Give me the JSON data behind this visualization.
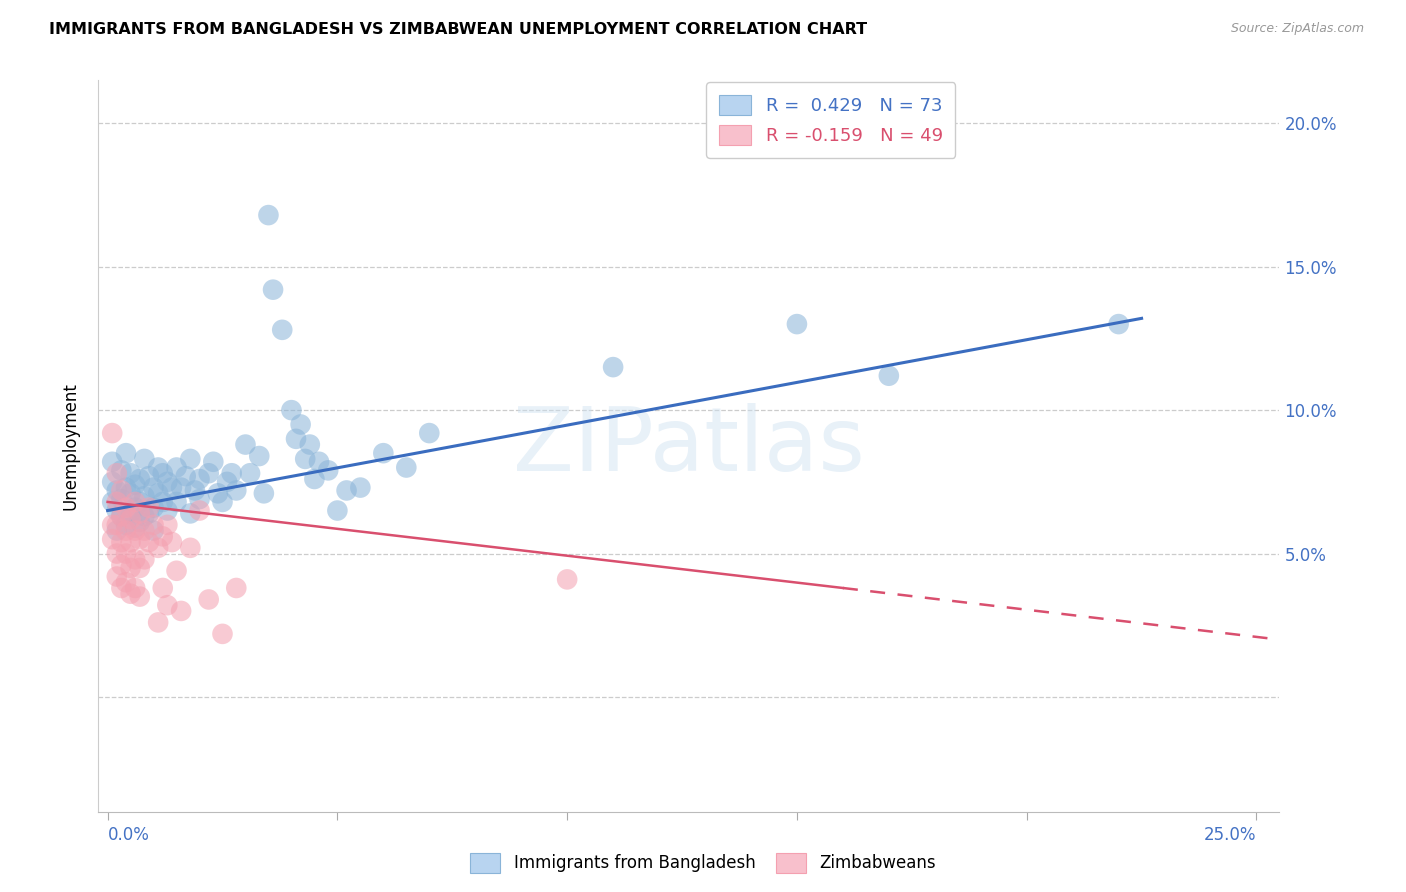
{
  "title": "IMMIGRANTS FROM BANGLADESH VS ZIMBABWEAN UNEMPLOYMENT CORRELATION CHART",
  "source": "Source: ZipAtlas.com",
  "ylabel": "Unemployment",
  "y_ticks": [
    0.0,
    0.05,
    0.1,
    0.15,
    0.2
  ],
  "x_lim": [
    -0.002,
    0.255
  ],
  "y_lim": [
    -0.04,
    0.215
  ],
  "watermark": "ZIPatlas",
  "blue_color": "#8ab4d8",
  "pink_color": "#f4a0b0",
  "blue_scatter": [
    [
      0.001,
      0.068
    ],
    [
      0.001,
      0.075
    ],
    [
      0.001,
      0.082
    ],
    [
      0.002,
      0.065
    ],
    [
      0.002,
      0.072
    ],
    [
      0.002,
      0.058
    ],
    [
      0.003,
      0.079
    ],
    [
      0.003,
      0.063
    ],
    [
      0.003,
      0.069
    ],
    [
      0.004,
      0.085
    ],
    [
      0.004,
      0.073
    ],
    [
      0.004,
      0.06
    ],
    [
      0.005,
      0.078
    ],
    [
      0.005,
      0.064
    ],
    [
      0.005,
      0.071
    ],
    [
      0.006,
      0.066
    ],
    [
      0.006,
      0.059
    ],
    [
      0.006,
      0.074
    ],
    [
      0.007,
      0.068
    ],
    [
      0.007,
      0.061
    ],
    [
      0.007,
      0.076
    ],
    [
      0.008,
      0.083
    ],
    [
      0.008,
      0.07
    ],
    [
      0.008,
      0.063
    ],
    [
      0.009,
      0.077
    ],
    [
      0.009,
      0.064
    ],
    [
      0.01,
      0.073
    ],
    [
      0.01,
      0.066
    ],
    [
      0.01,
      0.058
    ],
    [
      0.011,
      0.08
    ],
    [
      0.011,
      0.071
    ],
    [
      0.012,
      0.068
    ],
    [
      0.012,
      0.078
    ],
    [
      0.013,
      0.065
    ],
    [
      0.013,
      0.075
    ],
    [
      0.014,
      0.073
    ],
    [
      0.015,
      0.08
    ],
    [
      0.015,
      0.068
    ],
    [
      0.016,
      0.073
    ],
    [
      0.017,
      0.077
    ],
    [
      0.018,
      0.083
    ],
    [
      0.018,
      0.064
    ],
    [
      0.019,
      0.072
    ],
    [
      0.02,
      0.069
    ],
    [
      0.02,
      0.076
    ],
    [
      0.022,
      0.078
    ],
    [
      0.023,
      0.082
    ],
    [
      0.024,
      0.071
    ],
    [
      0.025,
      0.068
    ],
    [
      0.026,
      0.075
    ],
    [
      0.027,
      0.078
    ],
    [
      0.028,
      0.072
    ],
    [
      0.03,
      0.088
    ],
    [
      0.031,
      0.078
    ],
    [
      0.033,
      0.084
    ],
    [
      0.034,
      0.071
    ],
    [
      0.035,
      0.168
    ],
    [
      0.036,
      0.142
    ],
    [
      0.038,
      0.128
    ],
    [
      0.04,
      0.1
    ],
    [
      0.041,
      0.09
    ],
    [
      0.042,
      0.095
    ],
    [
      0.043,
      0.083
    ],
    [
      0.044,
      0.088
    ],
    [
      0.045,
      0.076
    ],
    [
      0.046,
      0.082
    ],
    [
      0.048,
      0.079
    ],
    [
      0.05,
      0.065
    ],
    [
      0.052,
      0.072
    ],
    [
      0.055,
      0.073
    ],
    [
      0.06,
      0.085
    ],
    [
      0.065,
      0.08
    ],
    [
      0.07,
      0.092
    ],
    [
      0.11,
      0.115
    ],
    [
      0.15,
      0.13
    ],
    [
      0.17,
      0.112
    ],
    [
      0.22,
      0.13
    ]
  ],
  "pink_scatter": [
    [
      0.001,
      0.092
    ],
    [
      0.001,
      0.06
    ],
    [
      0.001,
      0.055
    ],
    [
      0.002,
      0.078
    ],
    [
      0.002,
      0.068
    ],
    [
      0.002,
      0.06
    ],
    [
      0.002,
      0.05
    ],
    [
      0.002,
      0.042
    ],
    [
      0.003,
      0.072
    ],
    [
      0.003,
      0.063
    ],
    [
      0.003,
      0.054
    ],
    [
      0.003,
      0.046
    ],
    [
      0.003,
      0.038
    ],
    [
      0.004,
      0.066
    ],
    [
      0.004,
      0.058
    ],
    [
      0.004,
      0.05
    ],
    [
      0.004,
      0.04
    ],
    [
      0.005,
      0.062
    ],
    [
      0.005,
      0.054
    ],
    [
      0.005,
      0.045
    ],
    [
      0.005,
      0.036
    ],
    [
      0.006,
      0.068
    ],
    [
      0.006,
      0.058
    ],
    [
      0.006,
      0.048
    ],
    [
      0.006,
      0.038
    ],
    [
      0.007,
      0.064
    ],
    [
      0.007,
      0.055
    ],
    [
      0.007,
      0.045
    ],
    [
      0.007,
      0.035
    ],
    [
      0.008,
      0.058
    ],
    [
      0.008,
      0.048
    ],
    [
      0.009,
      0.066
    ],
    [
      0.009,
      0.054
    ],
    [
      0.01,
      0.06
    ],
    [
      0.011,
      0.052
    ],
    [
      0.011,
      0.026
    ],
    [
      0.012,
      0.056
    ],
    [
      0.012,
      0.038
    ],
    [
      0.013,
      0.06
    ],
    [
      0.013,
      0.032
    ],
    [
      0.014,
      0.054
    ],
    [
      0.015,
      0.044
    ],
    [
      0.016,
      0.03
    ],
    [
      0.018,
      0.052
    ],
    [
      0.02,
      0.065
    ],
    [
      0.022,
      0.034
    ],
    [
      0.025,
      0.022
    ],
    [
      0.028,
      0.038
    ],
    [
      0.1,
      0.041
    ]
  ],
  "blue_line": {
    "x0": 0.0,
    "y0": 0.065,
    "x1": 0.225,
    "y1": 0.132
  },
  "pink_solid_line": {
    "x0": 0.0,
    "y0": 0.068,
    "x1": 0.16,
    "y1": 0.038
  },
  "pink_dashed_line": {
    "x0": 0.16,
    "y0": 0.038,
    "x1": 0.255,
    "y1": 0.02
  }
}
